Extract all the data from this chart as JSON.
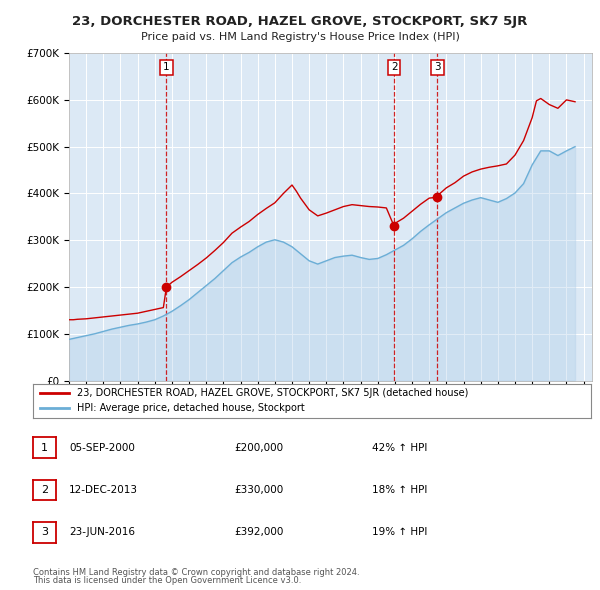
{
  "title": "23, DORCHESTER ROAD, HAZEL GROVE, STOCKPORT, SK7 5JR",
  "subtitle": "Price paid vs. HM Land Registry's House Price Index (HPI)",
  "background_color": "#ffffff",
  "plot_bg_color": "#dce9f5",
  "grid_color": "#ffffff",
  "legend_label_red": "23, DORCHESTER ROAD, HAZEL GROVE, STOCKPORT, SK7 5JR (detached house)",
  "legend_label_blue": "HPI: Average price, detached house, Stockport",
  "footer1": "Contains HM Land Registry data © Crown copyright and database right 2024.",
  "footer2": "This data is licensed under the Open Government Licence v3.0.",
  "ylim": [
    0,
    700000
  ],
  "yticks": [
    0,
    100000,
    200000,
    300000,
    400000,
    500000,
    600000,
    700000
  ],
  "ytick_labels": [
    "£0",
    "£100K",
    "£200K",
    "£300K",
    "£400K",
    "£500K",
    "£600K",
    "£700K"
  ],
  "xlim_start": 1995.0,
  "xlim_end": 2025.5,
  "sale_dates": [
    2000.68,
    2013.95,
    2016.48
  ],
  "sale_prices": [
    200000,
    330000,
    392000
  ],
  "sale_labels": [
    "1",
    "2",
    "3"
  ],
  "sale_info": [
    {
      "label": "1",
      "date": "05-SEP-2000",
      "price": "£200,000",
      "hpi": "42% ↑ HPI"
    },
    {
      "label": "2",
      "date": "12-DEC-2013",
      "price": "£330,000",
      "hpi": "18% ↑ HPI"
    },
    {
      "label": "3",
      "date": "23-JUN-2016",
      "price": "£392,000",
      "hpi": "19% ↑ HPI"
    }
  ],
  "red_line_x": [
    1995.0,
    1995.25,
    1995.5,
    1995.75,
    1996.0,
    1996.25,
    1996.5,
    1996.75,
    1997.0,
    1997.25,
    1997.5,
    1997.75,
    1998.0,
    1998.25,
    1998.5,
    1998.75,
    1999.0,
    1999.25,
    1999.5,
    1999.75,
    2000.0,
    2000.5,
    2000.68,
    2001.0,
    2001.5,
    2002.0,
    2002.5,
    2003.0,
    2003.5,
    2004.0,
    2004.5,
    2005.0,
    2005.5,
    2006.0,
    2006.5,
    2007.0,
    2007.5,
    2008.0,
    2008.25,
    2008.5,
    2009.0,
    2009.5,
    2010.0,
    2010.5,
    2011.0,
    2011.5,
    2012.0,
    2012.5,
    2013.0,
    2013.5,
    2013.95,
    2014.0,
    2014.5,
    2015.0,
    2015.5,
    2016.0,
    2016.48,
    2016.5,
    2017.0,
    2017.5,
    2018.0,
    2018.5,
    2019.0,
    2019.5,
    2020.0,
    2020.5,
    2021.0,
    2021.5,
    2022.0,
    2022.25,
    2022.5,
    2023.0,
    2023.5,
    2024.0,
    2024.5
  ],
  "red_line_y": [
    130000,
    130000,
    131000,
    131500,
    132000,
    133000,
    134000,
    135000,
    136000,
    137000,
    138000,
    139000,
    140000,
    141000,
    142000,
    143000,
    144000,
    146000,
    148000,
    150000,
    152000,
    156000,
    200000,
    210000,
    222000,
    235000,
    248000,
    262000,
    278000,
    295000,
    315000,
    328000,
    340000,
    355000,
    368000,
    380000,
    400000,
    418000,
    405000,
    390000,
    365000,
    352000,
    358000,
    365000,
    372000,
    376000,
    374000,
    372000,
    371000,
    369000,
    330000,
    336000,
    347000,
    362000,
    377000,
    390000,
    392000,
    396000,
    412000,
    423000,
    437000,
    446000,
    452000,
    456000,
    459000,
    463000,
    482000,
    513000,
    562000,
    598000,
    603000,
    590000,
    582000,
    600000,
    596000
  ],
  "blue_line_x": [
    1995.0,
    1995.5,
    1996.0,
    1996.5,
    1997.0,
    1997.5,
    1998.0,
    1998.5,
    1999.0,
    1999.5,
    2000.0,
    2000.5,
    2001.0,
    2001.5,
    2002.0,
    2002.5,
    2003.0,
    2003.5,
    2004.0,
    2004.5,
    2005.0,
    2005.5,
    2006.0,
    2006.5,
    2007.0,
    2007.5,
    2008.0,
    2008.5,
    2009.0,
    2009.5,
    2010.0,
    2010.5,
    2011.0,
    2011.5,
    2012.0,
    2012.5,
    2013.0,
    2013.5,
    2014.0,
    2014.5,
    2015.0,
    2015.5,
    2016.0,
    2016.5,
    2017.0,
    2017.5,
    2018.0,
    2018.5,
    2019.0,
    2019.5,
    2020.0,
    2020.5,
    2021.0,
    2021.5,
    2022.0,
    2022.5,
    2023.0,
    2023.5,
    2024.0,
    2024.5
  ],
  "blue_line_y": [
    88000,
    92000,
    96000,
    100000,
    105000,
    110000,
    114000,
    118000,
    121000,
    125000,
    130000,
    138000,
    148000,
    160000,
    173000,
    188000,
    203000,
    218000,
    235000,
    252000,
    264000,
    274000,
    286000,
    296000,
    301000,
    296000,
    286000,
    271000,
    256000,
    249000,
    256000,
    263000,
    266000,
    268000,
    263000,
    259000,
    261000,
    269000,
    279000,
    289000,
    303000,
    319000,
    333000,
    346000,
    359000,
    369000,
    379000,
    386000,
    391000,
    386000,
    381000,
    389000,
    401000,
    421000,
    461000,
    491000,
    491000,
    481000,
    491000,
    500000
  ]
}
